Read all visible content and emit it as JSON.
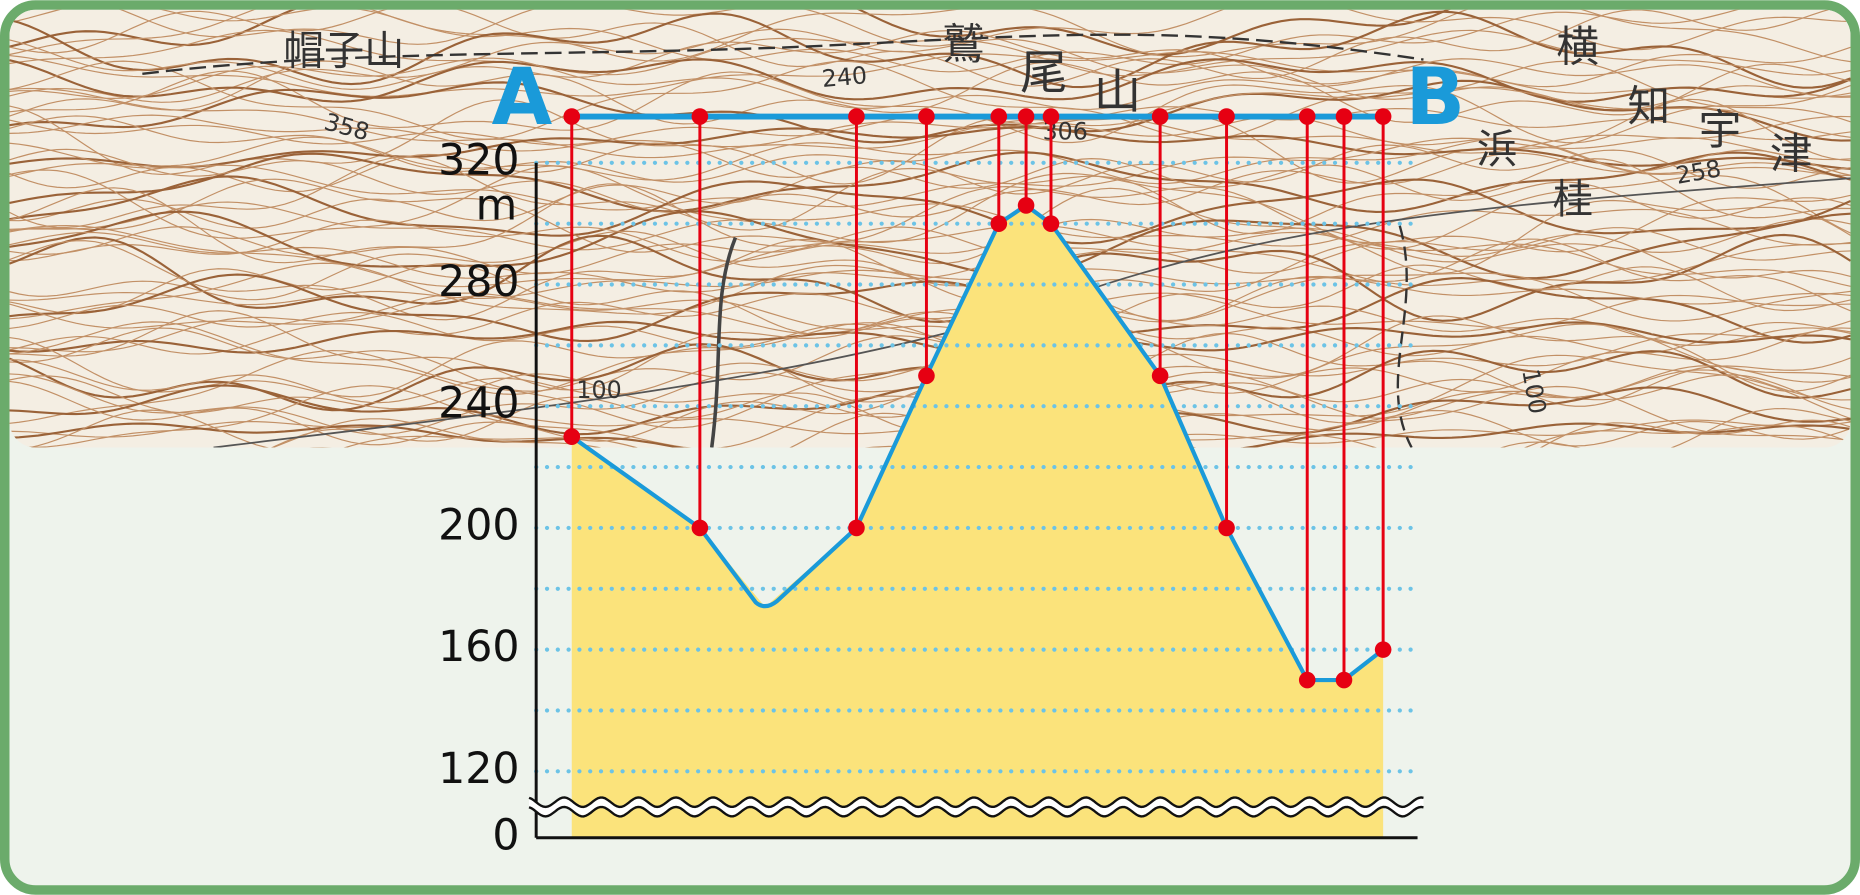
{
  "chart_data": {
    "type": "profile",
    "start_label": "A",
    "end_label": "B",
    "y_unit": "m",
    "xlim": [
      0,
      684
    ],
    "series": [
      {
        "color": "#1a9ad9",
        "marker_color": "#e60012",
        "fill": "#fbe37b",
        "x": [
          0,
          108,
          240,
          299,
          360,
          383,
          404,
          496,
          552,
          620,
          651,
          684
        ],
        "values": [
          230,
          200,
          200,
          250,
          300,
          306,
          300,
          250,
          200,
          150,
          150,
          160
        ]
      }
    ],
    "trough": {
      "x": 163,
      "value": 174
    },
    "ylim": [
      120,
      320
    ],
    "yticks": [
      0,
      120,
      160,
      200,
      240,
      280,
      320
    ],
    "ygrid": [
      120,
      140,
      160,
      180,
      200,
      220,
      240,
      260,
      280,
      300,
      320
    ],
    "grid_color": "#6cc3e6",
    "axis_break": true
  },
  "map": {
    "labels": [
      "帽子山",
      "358",
      "240",
      "鷲",
      "尾",
      "山",
      "306",
      "258",
      "100",
      "100",
      "横",
      "知",
      "宇",
      "津",
      "浜",
      "桂"
    ]
  }
}
